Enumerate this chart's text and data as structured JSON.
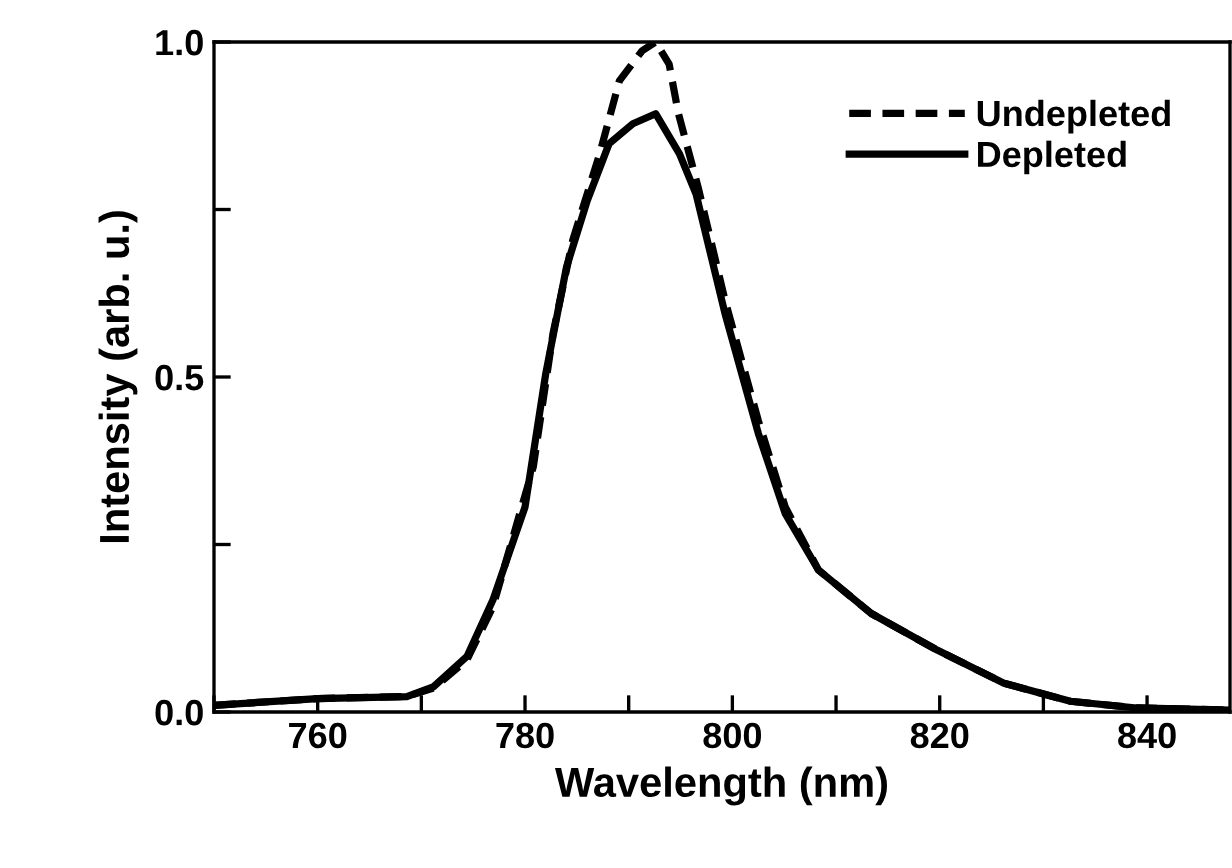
{
  "chart_data": {
    "type": "line",
    "xlabel": "Wavelength (nm)",
    "ylabel": "Intensity (arb. u.)",
    "xlim": [
      750,
      848
    ],
    "ylim": [
      0,
      1.0
    ],
    "xticks": [
      {
        "value": 750,
        "label": null
      },
      760,
      {
        "value": 770,
        "label": null
      },
      780,
      {
        "value": 790,
        "label": null
      },
      800,
      {
        "value": 810,
        "label": null
      },
      820,
      {
        "value": 830,
        "label": null
      },
      840
    ],
    "yticks": [
      {
        "value": 0,
        "label": "0.0"
      },
      {
        "value": 0.25,
        "label": null
      },
      0.5,
      {
        "value": 0.75,
        "label": null
      },
      {
        "value": 1.0,
        "label": "1.0"
      }
    ],
    "legend": "top right",
    "grid": false,
    "marker": "none",
    "series": [
      {
        "name": "Undepleted",
        "color": "#000000",
        "line_style": "dashed",
        "x": [
          750,
          760,
          768.6,
          771.2,
          774.4,
          776.9,
          780.8,
          782.7,
          784.6,
          787.2,
          789.1,
          791.3,
          792.6,
          793.9,
          794.8,
          796.7,
          799.3,
          802.5,
          805.1,
          808.3,
          813.4,
          819.8,
          826.2,
          832.6,
          839,
          847.9
        ],
        "values": [
          0.01,
          0.02,
          0.023,
          0.036,
          0.078,
          0.157,
          0.366,
          0.565,
          0.704,
          0.833,
          0.942,
          0.987,
          1.0,
          0.967,
          0.893,
          0.783,
          0.614,
          0.435,
          0.306,
          0.212,
          0.147,
          0.092,
          0.043,
          0.016,
          0.006,
          0.003
        ]
      },
      {
        "name": "Depleted",
        "color": "#000000",
        "line_style": "solid",
        "x": [
          750,
          760,
          768.6,
          771.2,
          774.4,
          776.9,
          780,
          782,
          784,
          786,
          788.1,
          790.4,
          792.6,
          794.9,
          796.5,
          799.3,
          802.5,
          805.1,
          808.3,
          813.4,
          819.8,
          826.2,
          832.6,
          839,
          847.9
        ],
        "values": [
          0.01,
          0.02,
          0.023,
          0.038,
          0.083,
          0.167,
          0.306,
          0.505,
          0.664,
          0.763,
          0.848,
          0.878,
          0.893,
          0.833,
          0.773,
          0.594,
          0.416,
          0.296,
          0.212,
          0.147,
          0.092,
          0.043,
          0.016,
          0.006,
          0.003
        ]
      }
    ]
  }
}
